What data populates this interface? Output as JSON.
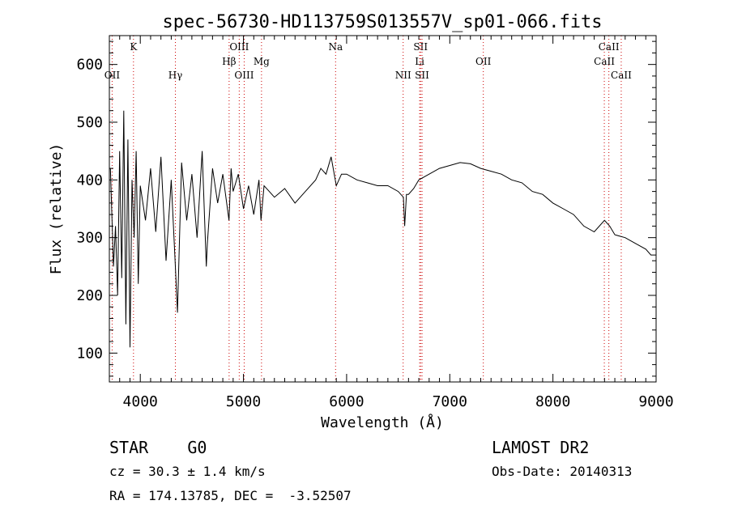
{
  "chart_data": {
    "type": "line",
    "title": "spec-56730-HD113759S013557V_sp01-066.fits",
    "xlabel": "Wavelength (Å)",
    "ylabel": "Flux (relative)",
    "xlim": [
      3700,
      9000
    ],
    "ylim": [
      50,
      650
    ],
    "xticks": [
      "4000",
      "5000",
      "6000",
      "7000",
      "8000",
      "9000"
    ],
    "yticks": [
      "100",
      "200",
      "300",
      "400",
      "500",
      "600"
    ],
    "grid": false,
    "series": [
      {
        "x": [
          3710,
          3740,
          3760,
          3780,
          3800,
          3820,
          3840,
          3860,
          3880,
          3900,
          3920,
          3940,
          3960,
          3980,
          4000,
          4050,
          4100,
          4150,
          4200,
          4250,
          4300,
          4340,
          4360,
          4400,
          4450,
          4500,
          4550,
          4600,
          4640,
          4650,
          4700,
          4750,
          4800,
          4860,
          4880,
          4900,
          4950,
          5000,
          5050,
          5100,
          5150,
          5170,
          5200,
          5250,
          5300,
          5400,
          5500,
          5600,
          5700,
          5750,
          5800,
          5850,
          5890,
          5900,
          5950,
          6000,
          6100,
          6200,
          6300,
          6400,
          6500,
          6550,
          6563,
          6580,
          6600,
          6650,
          6700,
          6800,
          6900,
          7000,
          7100,
          7200,
          7300,
          7400,
          7500,
          7600,
          7700,
          7800,
          7900,
          8000,
          8100,
          8200,
          8300,
          8400,
          8500,
          8550,
          8600,
          8700,
          8800,
          8900,
          8950,
          9000
        ],
        "y": [
          420,
          250,
          320,
          200,
          450,
          230,
          520,
          150,
          470,
          110,
          400,
          300,
          450,
          220,
          390,
          330,
          420,
          310,
          440,
          260,
          400,
          250,
          170,
          430,
          330,
          410,
          300,
          450,
          250,
          290,
          420,
          360,
          410,
          330,
          420,
          380,
          410,
          350,
          390,
          340,
          400,
          330,
          390,
          380,
          370,
          385,
          360,
          380,
          400,
          420,
          410,
          440,
          400,
          390,
          410,
          410,
          400,
          395,
          390,
          390,
          380,
          370,
          320,
          375,
          375,
          385,
          400,
          410,
          420,
          425,
          430,
          428,
          420,
          415,
          410,
          400,
          395,
          380,
          375,
          360,
          350,
          340,
          320,
          310,
          330,
          320,
          305,
          300,
          290,
          280,
          270,
          270
        ]
      }
    ],
    "markers": [
      {
        "label": "OII",
        "x": 3727,
        "row": 3,
        "color": "#cc0000"
      },
      {
        "label": "K",
        "x": 3934,
        "row": 1,
        "color": "#cc0000"
      },
      {
        "label": "Hγ",
        "x": 4340,
        "row": 3,
        "color": "#cc0000"
      },
      {
        "label": "Hβ",
        "x": 4861,
        "row": 2,
        "color": "#cc0000"
      },
      {
        "label": "OIII",
        "x": 4959,
        "row": 1,
        "color": "#cc0000"
      },
      {
        "label": "OIII",
        "x": 5007,
        "row": 3,
        "color": "#cc0000"
      },
      {
        "label": "Mg",
        "x": 5175,
        "row": 2,
        "color": "#cc0000"
      },
      {
        "label": "Na",
        "x": 5893,
        "row": 1,
        "color": "#cc0000"
      },
      {
        "label": "NII",
        "x": 6548,
        "row": 3,
        "color": "#cc0000"
      },
      {
        "label": "SII",
        "x": 6717,
        "row": 1,
        "color": "#cc0000"
      },
      {
        "label": "Li",
        "x": 6708,
        "row": 2,
        "color": "#cc0000"
      },
      {
        "label": "SII",
        "x": 6731,
        "row": 3,
        "color": "#cc0000"
      },
      {
        "label": "OII",
        "x": 7325,
        "row": 2,
        "color": "#cc0000"
      },
      {
        "label": "CaII",
        "x": 8542,
        "row": 1,
        "color": "#cc0000"
      },
      {
        "label": "CaII",
        "x": 8498,
        "row": 2,
        "color": "#cc0000"
      },
      {
        "label": "CaII",
        "x": 8662,
        "row": 3,
        "color": "#cc0000"
      }
    ]
  },
  "info": {
    "class": "STAR    G0",
    "survey": "LAMOST DR2",
    "cz": "cz = 30.3 ± 1.4 km/s",
    "obs_date": "Obs-Date: 20140313",
    "coords": "RA = 174.13785, DEC =  -3.52507"
  }
}
